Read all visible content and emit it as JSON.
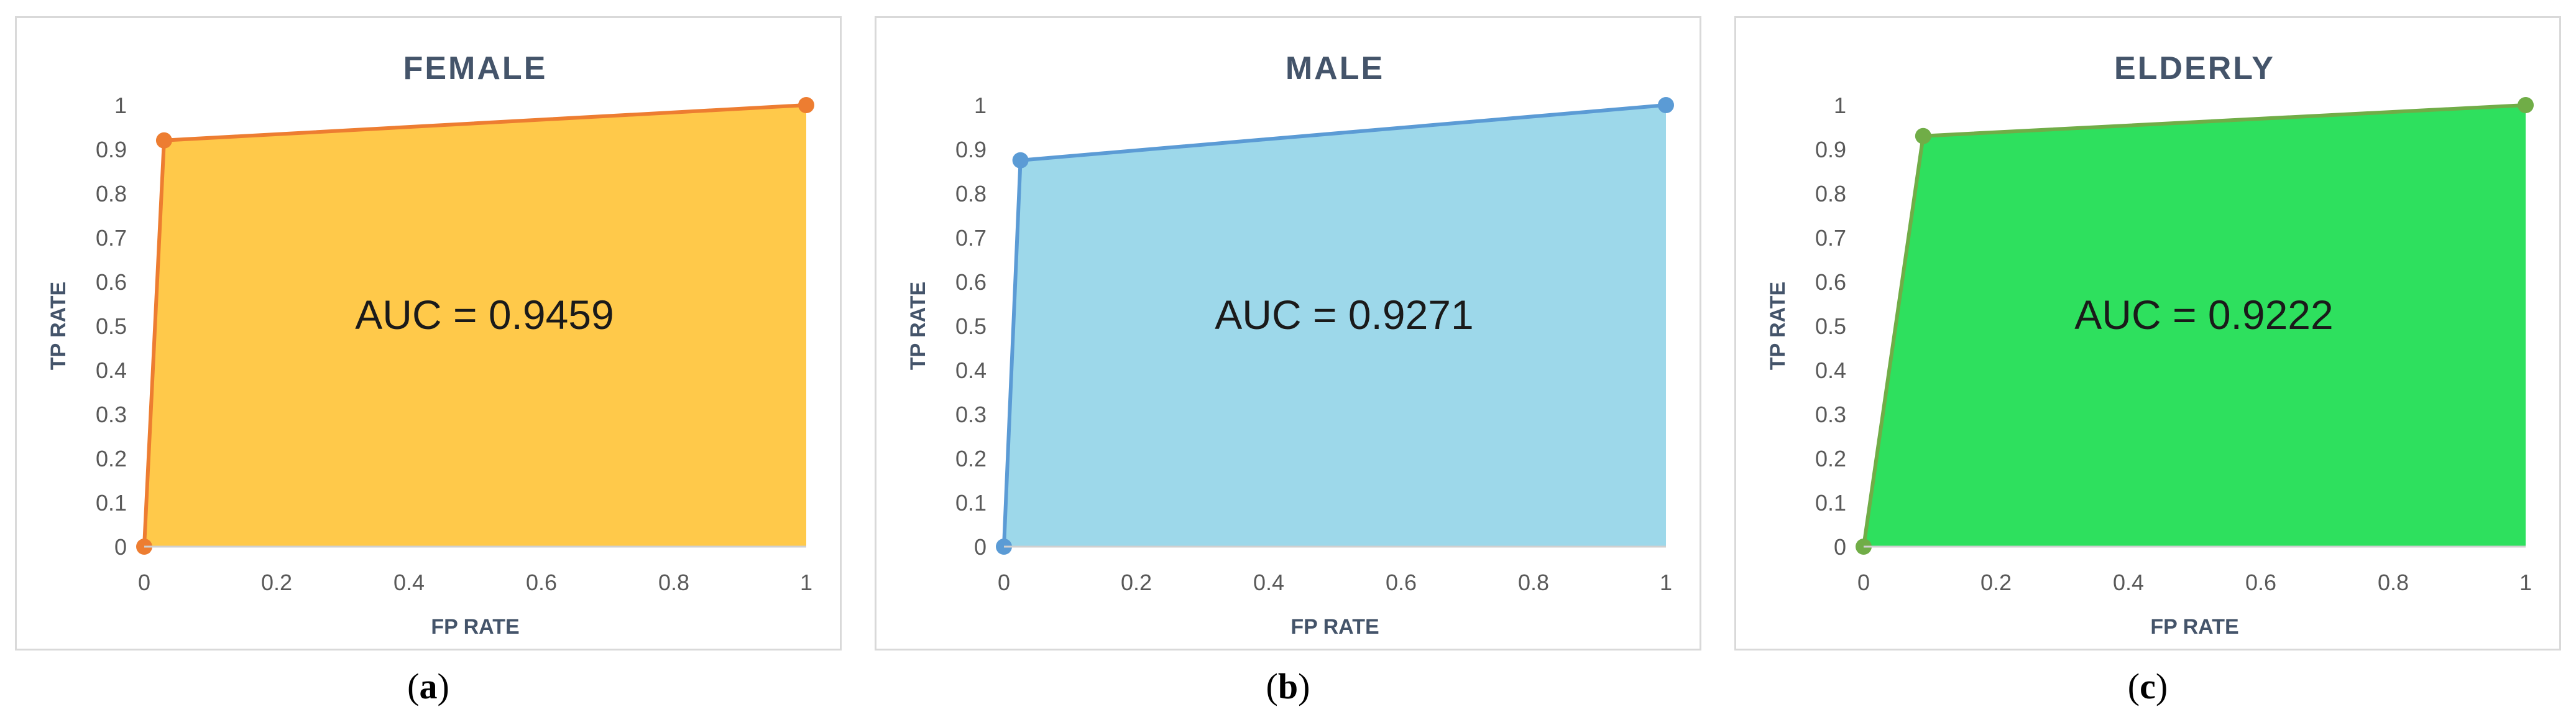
{
  "charts": [
    {
      "chart_data": {
        "type": "area",
        "title": "FEMALE",
        "xlabel": "FP RATE",
        "ylabel": "TP RATE",
        "xlim": [
          0,
          1
        ],
        "ylim": [
          0,
          1
        ],
        "x_ticks": [
          "0",
          "0.2",
          "0.4",
          "0.6",
          "0.8",
          "1"
        ],
        "y_ticks": [
          "0",
          "0.1",
          "0.2",
          "0.3",
          "0.4",
          "0.5",
          "0.6",
          "0.7",
          "0.8",
          "0.9",
          "1"
        ],
        "grid": false,
        "legend": "none",
        "annotation": "AUC = 0.9459",
        "series": [
          {
            "points": [
              {
                "x": 0,
                "y": 0
              },
              {
                "x": 0.03,
                "y": 0.92
              },
              {
                "x": 1,
                "y": 1
              }
            ]
          }
        ]
      },
      "colors": {
        "fill": "#ffc94a",
        "line": "#ed7d31",
        "marker": "#ed7d31"
      },
      "caption_letter": "a"
    },
    {
      "chart_data": {
        "type": "area",
        "title": "MALE",
        "xlabel": "FP RATE",
        "ylabel": "TP RATE",
        "xlim": [
          0,
          1
        ],
        "ylim": [
          0,
          1
        ],
        "x_ticks": [
          "0",
          "0.2",
          "0.4",
          "0.6",
          "0.8",
          "1"
        ],
        "y_ticks": [
          "0",
          "0.1",
          "0.2",
          "0.3",
          "0.4",
          "0.5",
          "0.6",
          "0.7",
          "0.8",
          "0.9",
          "1"
        ],
        "grid": false,
        "legend": "none",
        "annotation": "AUC = 0.9271",
        "series": [
          {
            "points": [
              {
                "x": 0,
                "y": 0
              },
              {
                "x": 0.025,
                "y": 0.875
              },
              {
                "x": 1,
                "y": 1
              }
            ]
          }
        ]
      },
      "colors": {
        "fill": "#9dd8ea",
        "line": "#5b9bd5",
        "marker": "#5b9bd5"
      },
      "caption_letter": "b"
    },
    {
      "chart_data": {
        "type": "area",
        "title": "ELDERLY",
        "xlabel": "FP RATE",
        "ylabel": "TP RATE",
        "xlim": [
          0,
          1
        ],
        "ylim": [
          0,
          1
        ],
        "x_ticks": [
          "0",
          "0.2",
          "0.4",
          "0.6",
          "0.8",
          "1"
        ],
        "y_ticks": [
          "0",
          "0.1",
          "0.2",
          "0.3",
          "0.4",
          "0.5",
          "0.6",
          "0.7",
          "0.8",
          "0.9",
          "1"
        ],
        "grid": false,
        "legend": "none",
        "annotation": "AUC = 0.9222",
        "series": [
          {
            "points": [
              {
                "x": 0,
                "y": 0
              },
              {
                "x": 0.09,
                "y": 0.93
              },
              {
                "x": 1,
                "y": 1
              }
            ]
          }
        ]
      },
      "colors": {
        "fill": "#2ee05e",
        "line": "#70ad47",
        "marker": "#70ad47"
      },
      "caption_letter": "c"
    }
  ]
}
